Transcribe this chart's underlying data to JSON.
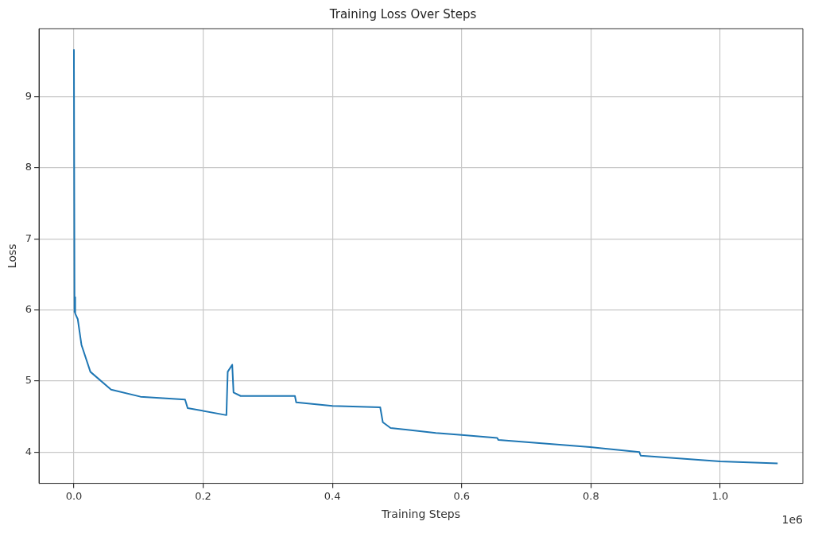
{
  "chart_data": {
    "type": "line",
    "title": "Training Loss Over Steps",
    "xlabel": "Training Steps",
    "ylabel": "Loss",
    "series": [
      {
        "color": "#1f77b4",
        "x": [
          0,
          0.001,
          0.0015,
          0.002,
          0.006,
          0.0117,
          0.0255,
          0.0575,
          0.103,
          0.172,
          0.176,
          0.236,
          0.238,
          0.245,
          0.247,
          0.258,
          0.342,
          0.344,
          0.4,
          0.474,
          0.478,
          0.49,
          0.56,
          0.6,
          0.655,
          0.657,
          0.799,
          0.875,
          0.877,
          1.0,
          1.089
        ],
        "values": [
          9.67,
          5.97,
          6.18,
          5.95,
          5.87,
          5.51,
          5.13,
          4.88,
          4.78,
          4.74,
          4.62,
          4.52,
          5.13,
          5.23,
          4.84,
          4.79,
          4.79,
          4.7,
          4.65,
          4.63,
          4.42,
          4.34,
          4.27,
          4.24,
          4.2,
          4.17,
          4.07,
          4.0,
          3.95,
          3.87,
          3.84
        ]
      }
    ],
    "xlim": [
      -0.054,
      1.128
    ],
    "ylim": [
      3.56,
      9.96
    ],
    "xticks": [
      {
        "value": 0,
        "label": "0.0"
      },
      0.2,
      0.4,
      0.6,
      0.8,
      {
        "value": 1,
        "label": "1.0"
      }
    ],
    "yticks": [
      4,
      5,
      6,
      7,
      8,
      9
    ],
    "annotations": [
      "1e6"
    ],
    "grid": true,
    "legend": false,
    "marker": "none",
    "line_style": "solid"
  }
}
